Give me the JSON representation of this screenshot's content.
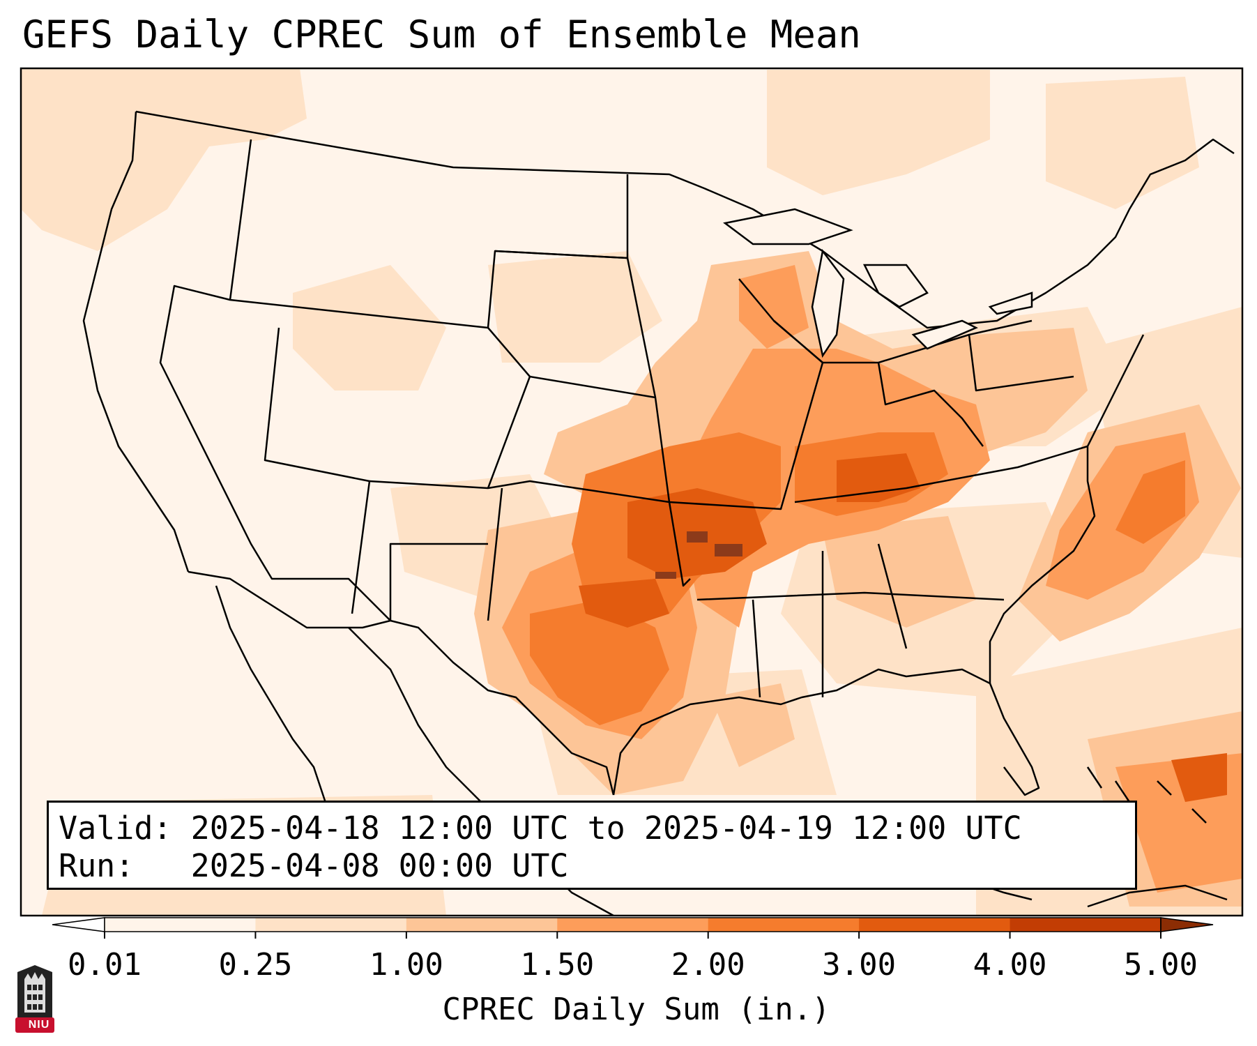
{
  "title": "GEFS Daily CPREC Sum of Ensemble Mean",
  "info": {
    "valid_label": "Valid:",
    "valid_value": "2025-04-18 12:00 UTC to 2025-04-19 12:00 UTC",
    "run_label": "Run:",
    "run_value": "2025-04-08 00:00 UTC"
  },
  "colorbar": {
    "label": "CPREC Daily Sum (in.)",
    "ticks": [
      "0.01",
      "0.25",
      "1.00",
      "1.50",
      "2.00",
      "3.00",
      "4.00",
      "5.00"
    ],
    "colors": [
      "#fff4ea",
      "#fee2c7",
      "#fdc597",
      "#fd9d5a",
      "#f57c2d",
      "#e25b0f",
      "#c23d04"
    ],
    "under_color": "#ffffff",
    "over_color": "#8c2d04"
  },
  "colors": {
    "background_light": "#fff4ea",
    "heavy": "#e25b0f",
    "extreme": "#8c3a1a"
  },
  "logo": {
    "text": "NIU",
    "color": "#c8102e"
  }
}
